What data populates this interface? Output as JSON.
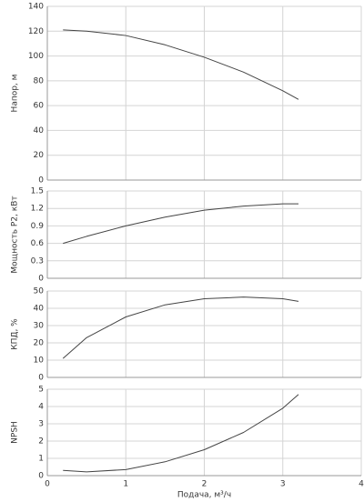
{
  "chart_data": [
    {
      "type": "line",
      "ylabel": "Напор, м",
      "xlim": [
        0,
        4
      ],
      "ylim": [
        0,
        140
      ],
      "yticks": [
        0,
        20,
        40,
        60,
        80,
        100,
        120,
        140
      ],
      "grid": true,
      "x": [
        0.2,
        0.5,
        1,
        1.5,
        2,
        2.5,
        3,
        3.2
      ],
      "series": [
        {
          "color": "#444444",
          "values": [
            121,
            120,
            116.5,
            109,
            99,
            87,
            72,
            65
          ]
        }
      ]
    },
    {
      "type": "line",
      "ylabel": "Мощность P2, кВт",
      "xlim": [
        0,
        4
      ],
      "ylim": [
        0,
        1.5
      ],
      "yticks": [
        0,
        0.3,
        0.6,
        0.9,
        1.2,
        1.5
      ],
      "grid": true,
      "x": [
        0.2,
        0.5,
        1,
        1.5,
        2,
        2.5,
        3,
        3.2
      ],
      "series": [
        {
          "color": "#444444",
          "values": [
            0.6,
            0.72,
            0.9,
            1.05,
            1.17,
            1.24,
            1.28,
            1.28
          ]
        }
      ]
    },
    {
      "type": "line",
      "ylabel": "КПД, %",
      "xlim": [
        0,
        4
      ],
      "ylim": [
        0,
        50
      ],
      "yticks": [
        0,
        10,
        20,
        30,
        40,
        50
      ],
      "grid": true,
      "x": [
        0.2,
        0.5,
        1,
        1.5,
        2,
        2.5,
        3,
        3.2
      ],
      "series": [
        {
          "color": "#444444",
          "values": [
            11,
            23,
            35,
            42,
            45.5,
            46.5,
            45.5,
            44
          ]
        }
      ]
    },
    {
      "type": "line",
      "ylabel": "NPSH",
      "xlabel": "Подача, м³/ч",
      "xlim": [
        0,
        4
      ],
      "ylim": [
        0,
        5
      ],
      "yticks": [
        0,
        1,
        2,
        3,
        4,
        5
      ],
      "xticks": [
        0,
        1,
        2,
        3,
        4
      ],
      "grid": true,
      "x": [
        0.2,
        0.5,
        1,
        1.5,
        2,
        2.5,
        3,
        3.2
      ],
      "series": [
        {
          "color": "#444444",
          "values": [
            0.3,
            0.22,
            0.35,
            0.8,
            1.5,
            2.5,
            3.9,
            4.7
          ]
        }
      ]
    }
  ]
}
